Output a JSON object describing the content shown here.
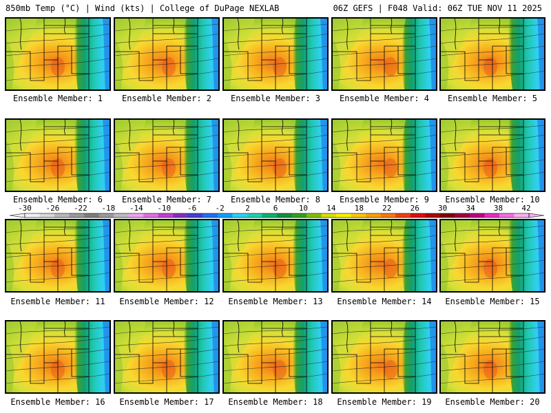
{
  "header": {
    "left": "850mb Temp (°C) | Wind (kts) | College of DuPage NEXLAB",
    "right": "06Z GEFS | F048 Valid: 06Z TUE NOV 11 2025"
  },
  "panels": [
    {
      "label": "Ensemble Member: 1"
    },
    {
      "label": "Ensemble Member: 2"
    },
    {
      "label": "Ensemble Member: 3"
    },
    {
      "label": "Ensemble Member: 4"
    },
    {
      "label": "Ensemble Member: 5"
    },
    {
      "label": "Ensemble Member: 6"
    },
    {
      "label": "Ensemble Member: 7"
    },
    {
      "label": "Ensemble Member: 8"
    },
    {
      "label": "Ensemble Member: 9"
    },
    {
      "label": "Ensemble Member: 10"
    },
    {
      "label": "Ensemble Member: 11"
    },
    {
      "label": "Ensemble Member: 12"
    },
    {
      "label": "Ensemble Member: 13"
    },
    {
      "label": "Ensemble Member: 14"
    },
    {
      "label": "Ensemble Member: 15"
    },
    {
      "label": "Ensemble Member: 16"
    },
    {
      "label": "Ensemble Member: 17"
    },
    {
      "label": "Ensemble Member: 18"
    },
    {
      "label": "Ensemble Member: 19"
    },
    {
      "label": "Ensemble Member: 20"
    }
  ],
  "colorbar": {
    "labels": [
      "-30",
      "-26",
      "-22",
      "-18",
      "-14",
      "-10",
      "-6",
      "-2",
      "2",
      "6",
      "10",
      "14",
      "18",
      "22",
      "26",
      "30",
      "34",
      "38",
      "42"
    ],
    "colors": [
      "#f0f0f0",
      "#d8d8d8",
      "#b8b8b8",
      "#9a9a9a",
      "#7e7e7e",
      "#9a9a9a",
      "#bcbcbc",
      "#f0a0f0",
      "#e070e0",
      "#c040d0",
      "#8030c0",
      "#4040d8",
      "#2070f0",
      "#10a0f8",
      "#30d0f0",
      "#20d0b0",
      "#10b070",
      "#109040",
      "#30a020",
      "#80c000",
      "#d8e000",
      "#f8f000",
      "#f8c800",
      "#f8a000",
      "#f87810",
      "#f04010",
      "#d81010",
      "#a80808",
      "#800000",
      "#a00040",
      "#c00080",
      "#e030c0",
      "#f070e0",
      "#f8b0f0"
    ]
  }
}
